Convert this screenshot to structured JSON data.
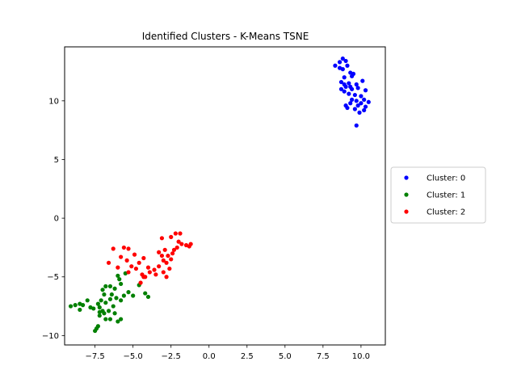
{
  "chart_data": {
    "type": "scatter",
    "title": "Identified Clusters - K-Means TSNE",
    "xlabel": "",
    "ylabel": "",
    "xlim": [
      -9.5,
      11.6
    ],
    "ylim": [
      -10.8,
      14.6
    ],
    "xticks": [
      -7.5,
      -5.0,
      -2.5,
      0.0,
      2.5,
      5.0,
      7.5,
      10.0
    ],
    "xtick_labels": [
      "−7.5",
      "−5.0",
      "−2.5",
      "0.0",
      "2.5",
      "5.0",
      "7.5",
      "10.0"
    ],
    "yticks": [
      -10,
      -5,
      0,
      5,
      10
    ],
    "ytick_labels": [
      "−10",
      "−5",
      "0",
      "5",
      "10"
    ],
    "grid": false,
    "legend_position": "right-outside",
    "series": [
      {
        "name": "Cluster: 0",
        "color": "#0000ff",
        "points": [
          [
            8.8,
            13.6
          ],
          [
            8.6,
            13.3
          ],
          [
            9.0,
            13.4
          ],
          [
            8.3,
            13.0
          ],
          [
            9.1,
            13.0
          ],
          [
            8.8,
            12.7
          ],
          [
            9.3,
            12.4
          ],
          [
            8.6,
            12.8
          ],
          [
            9.4,
            12.1
          ],
          [
            8.9,
            12.0
          ],
          [
            8.7,
            11.6
          ],
          [
            9.2,
            11.5
          ],
          [
            9.7,
            11.4
          ],
          [
            10.1,
            11.7
          ],
          [
            9.0,
            11.2
          ],
          [
            8.7,
            11.0
          ],
          [
            9.4,
            11.0
          ],
          [
            9.8,
            11.1
          ],
          [
            10.3,
            10.9
          ],
          [
            8.9,
            10.8
          ],
          [
            9.2,
            10.6
          ],
          [
            9.6,
            10.5
          ],
          [
            10.0,
            10.4
          ],
          [
            9.4,
            10.1
          ],
          [
            10.2,
            10.1
          ],
          [
            9.7,
            10.0
          ],
          [
            9.3,
            9.8
          ],
          [
            10.5,
            9.9
          ],
          [
            9.0,
            9.6
          ],
          [
            9.8,
            9.6
          ],
          [
            10.3,
            9.5
          ],
          [
            9.6,
            9.3
          ],
          [
            10.2,
            9.2
          ],
          [
            9.1,
            9.4
          ],
          [
            9.9,
            9.0
          ],
          [
            9.7,
            7.9
          ],
          [
            9.5,
            12.3
          ],
          [
            8.9,
            11.4
          ],
          [
            10.0,
            9.8
          ],
          [
            9.3,
            11.2
          ]
        ]
      },
      {
        "name": "Cluster: 1",
        "color": "#008000",
        "points": [
          [
            -9.1,
            -7.5
          ],
          [
            -8.8,
            -7.4
          ],
          [
            -8.5,
            -7.3
          ],
          [
            -8.3,
            -7.4
          ],
          [
            -8.0,
            -7.0
          ],
          [
            -8.5,
            -7.8
          ],
          [
            -7.8,
            -7.6
          ],
          [
            -7.6,
            -7.7
          ],
          [
            -7.3,
            -7.3
          ],
          [
            -7.1,
            -7.0
          ],
          [
            -7.2,
            -7.6
          ],
          [
            -7.0,
            -7.9
          ],
          [
            -7.2,
            -8.3
          ],
          [
            -6.9,
            -8.1
          ],
          [
            -6.8,
            -8.6
          ],
          [
            -7.3,
            -9.2
          ],
          [
            -7.5,
            -9.6
          ],
          [
            -7.4,
            -9.4
          ],
          [
            -6.5,
            -8.6
          ],
          [
            -6.2,
            -8.1
          ],
          [
            -6.0,
            -8.8
          ],
          [
            -5.8,
            -8.6
          ],
          [
            -6.3,
            -7.5
          ],
          [
            -6.8,
            -7.2
          ],
          [
            -6.5,
            -6.9
          ],
          [
            -6.1,
            -6.8
          ],
          [
            -6.4,
            -6.5
          ],
          [
            -6.9,
            -6.5
          ],
          [
            -5.8,
            -7.0
          ],
          [
            -5.6,
            -6.6
          ],
          [
            -6.2,
            -6.0
          ],
          [
            -6.5,
            -5.8
          ],
          [
            -5.8,
            -5.6
          ],
          [
            -5.9,
            -5.2
          ],
          [
            -6.8,
            -5.8
          ],
          [
            -7.0,
            -6.1
          ],
          [
            -5.3,
            -6.3
          ],
          [
            -5.0,
            -6.6
          ],
          [
            -4.2,
            -6.4
          ],
          [
            -4.0,
            -6.7
          ],
          [
            -4.6,
            -5.7
          ],
          [
            -6.0,
            -4.9
          ],
          [
            -5.5,
            -4.7
          ],
          [
            -7.2,
            -8.0
          ],
          [
            -6.6,
            -7.9
          ]
        ]
      },
      {
        "name": "Cluster: 2",
        "color": "#ff0000",
        "points": [
          [
            -6.3,
            -2.6
          ],
          [
            -5.6,
            -2.5
          ],
          [
            -5.3,
            -2.6
          ],
          [
            -6.6,
            -3.8
          ],
          [
            -5.8,
            -3.3
          ],
          [
            -5.4,
            -3.6
          ],
          [
            -5.1,
            -4.1
          ],
          [
            -4.9,
            -3.1
          ],
          [
            -4.6,
            -3.8
          ],
          [
            -4.3,
            -3.4
          ],
          [
            -6.0,
            -4.2
          ],
          [
            -5.3,
            -4.6
          ],
          [
            -4.8,
            -4.3
          ],
          [
            -4.4,
            -4.8
          ],
          [
            -4.2,
            -5.0
          ],
          [
            -4.0,
            -4.2
          ],
          [
            -3.9,
            -4.6
          ],
          [
            -3.6,
            -4.4
          ],
          [
            -3.3,
            -4.1
          ],
          [
            -3.0,
            -3.6
          ],
          [
            -2.8,
            -3.8
          ],
          [
            -2.5,
            -3.5
          ],
          [
            -2.7,
            -3.2
          ],
          [
            -2.4,
            -3.0
          ],
          [
            -2.3,
            -2.7
          ],
          [
            -2.1,
            -2.5
          ],
          [
            -2.0,
            -2.0
          ],
          [
            -1.8,
            -2.2
          ],
          [
            -1.5,
            -2.3
          ],
          [
            -1.3,
            -2.4
          ],
          [
            -1.2,
            -2.2
          ],
          [
            -2.2,
            -1.3
          ],
          [
            -1.9,
            -1.3
          ],
          [
            -2.5,
            -1.6
          ],
          [
            -3.1,
            -1.7
          ],
          [
            -2.9,
            -2.7
          ],
          [
            -3.3,
            -2.9
          ],
          [
            -2.6,
            -4.3
          ],
          [
            -3.0,
            -4.6
          ],
          [
            -2.8,
            -5.0
          ],
          [
            -3.5,
            -4.8
          ],
          [
            -4.5,
            -5.5
          ],
          [
            -4.3,
            -5.0
          ],
          [
            -3.1,
            -3.2
          ]
        ]
      }
    ]
  }
}
